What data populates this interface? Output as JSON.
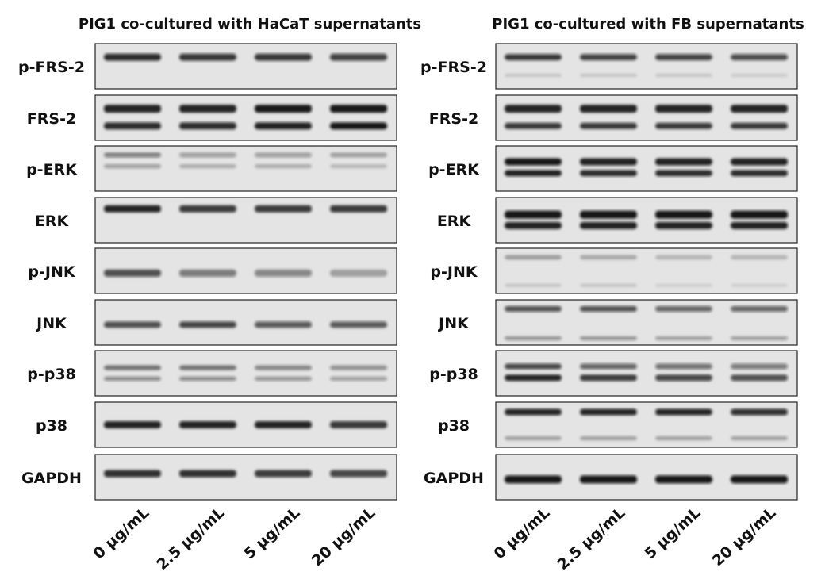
{
  "panels": [
    {
      "title": "PIG1 co-cultured with HaCaT supernatants",
      "rows": [
        "p-FRS-2",
        "FRS-2",
        "p-ERK",
        "ERK",
        "p-JNK",
        "JNK",
        "p-p38",
        "p38",
        "GAPDH"
      ],
      "lanes": [
        "0 μg/mL",
        "2.5 μg/mL",
        "5 μg/mL",
        "20 μg/mL"
      ]
    },
    {
      "title": "PIG1 co-cultured with FB supernatants",
      "rows": [
        "p-FRS-2",
        "FRS-2",
        "p-ERK",
        "ERK",
        "p-JNK",
        "JNK",
        "p-p38",
        "p38",
        "GAPDH"
      ],
      "lanes": [
        "0 μg/mL",
        "2.5 μg/mL",
        "5 μg/mL",
        "20 μg/mL"
      ]
    }
  ]
}
